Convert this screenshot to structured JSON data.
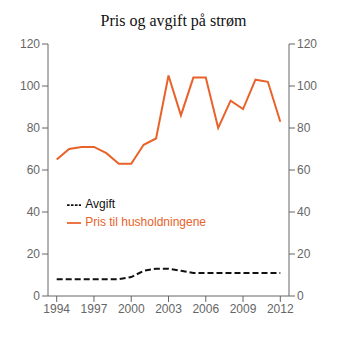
{
  "chart_data": {
    "type": "line",
    "title": "Pris og avgift på strøm",
    "x": [
      1994,
      1995,
      1996,
      1997,
      1998,
      1999,
      2000,
      2001,
      2002,
      2003,
      2004,
      2005,
      2006,
      2007,
      2008,
      2009,
      2010,
      2011,
      2012
    ],
    "series": [
      {
        "name": "Pris til husholdningene",
        "color": "#E8622A",
        "line_style": "solid",
        "values": [
          65,
          70,
          71,
          71,
          68,
          63,
          63,
          72,
          75,
          105,
          86,
          104,
          104,
          80,
          93,
          89,
          103,
          102,
          83
        ]
      },
      {
        "name": "Avgift",
        "color": "#111111",
        "line_style": "dashed",
        "values": [
          8,
          8,
          8,
          8,
          8,
          8,
          9,
          12,
          13,
          13,
          12,
          11,
          11,
          11,
          11,
          11,
          11,
          11,
          11
        ]
      }
    ],
    "xlim": [
      1993.3,
      2012.7
    ],
    "xticks": [
      1994,
      1997,
      2000,
      2003,
      2006,
      2009,
      2012
    ],
    "ylim": [
      0,
      120
    ],
    "yticks": [
      0,
      20,
      40,
      60,
      80,
      100,
      120
    ],
    "y2lim": [
      0,
      120
    ],
    "y2ticks": [
      0,
      20,
      40,
      60,
      80,
      100,
      120
    ],
    "grid": false,
    "legend": "lower left"
  }
}
